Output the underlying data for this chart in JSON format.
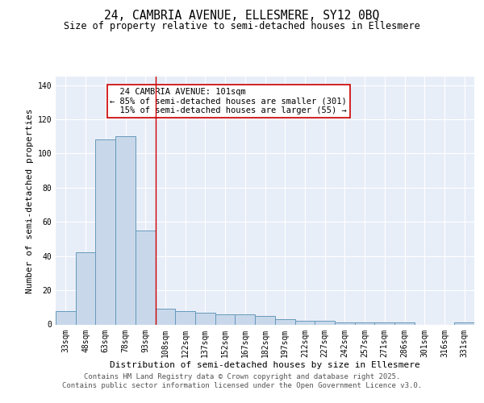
{
  "title_line1": "24, CAMBRIA AVENUE, ELLESMERE, SY12 0BQ",
  "title_line2": "Size of property relative to semi-detached houses in Ellesmere",
  "xlabel": "Distribution of semi-detached houses by size in Ellesmere",
  "ylabel": "Number of semi-detached properties",
  "categories": [
    "33sqm",
    "48sqm",
    "63sqm",
    "78sqm",
    "93sqm",
    "108sqm",
    "122sqm",
    "137sqm",
    "152sqm",
    "167sqm",
    "182sqm",
    "197sqm",
    "212sqm",
    "227sqm",
    "242sqm",
    "257sqm",
    "271sqm",
    "286sqm",
    "301sqm",
    "316sqm",
    "331sqm"
  ],
  "values": [
    8,
    42,
    108,
    110,
    55,
    9,
    8,
    7,
    6,
    6,
    5,
    3,
    2,
    2,
    1,
    1,
    1,
    1,
    0,
    0,
    1
  ],
  "bar_color": "#c8d8ea",
  "bar_edge_color": "#6699bb",
  "background_color": "#e8eef8",
  "grid_color": "#ffffff",
  "red_line_x": 4.5,
  "annotation_text": "  24 CAMBRIA AVENUE: 101sqm\n← 85% of semi-detached houses are smaller (301)\n  15% of semi-detached houses are larger (55) →",
  "annotation_box_color": "#ffffff",
  "annotation_box_edge": "#cc0000",
  "ylim": [
    0,
    145
  ],
  "yticks": [
    0,
    20,
    40,
    60,
    80,
    100,
    120,
    140
  ],
  "footer_line1": "Contains HM Land Registry data © Crown copyright and database right 2025.",
  "footer_line2": "Contains public sector information licensed under the Open Government Licence v3.0.",
  "title_fontsize": 10.5,
  "subtitle_fontsize": 8.5,
  "axis_label_fontsize": 8,
  "tick_fontsize": 7,
  "annotation_fontsize": 7.5,
  "footer_fontsize": 6.5
}
